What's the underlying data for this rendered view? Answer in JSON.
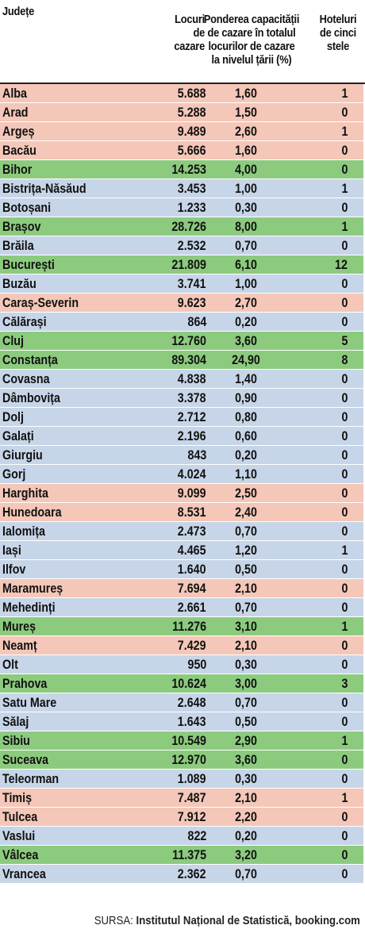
{
  "headers": {
    "county": "Județe",
    "places": [
      "Locuri",
      "de",
      "cazare"
    ],
    "share": [
      "Ponderea capacității",
      "de cazare în totalul",
      "locurilor de cazare",
      "la nivelul țării (%)"
    ],
    "hotels": [
      "Hoteluri",
      "de cinci",
      "stele"
    ]
  },
  "colors": {
    "orange": "#f4c7b8",
    "blue": "#c7d5e8",
    "green": "#8ccb7e"
  },
  "source": {
    "label": "SURSA:",
    "text": "Institutul Național de Statistică, booking.com"
  },
  "chart_data": {
    "type": "table",
    "columns": [
      "Județe",
      "Locuri de cazare",
      "Ponderea capacității de cazare în totalul locurilor de cazare la nivelul țării (%)",
      "Hoteluri de cinci stele"
    ],
    "rows": [
      {
        "name": "Alba",
        "places": "5.688",
        "pct": "1,60",
        "hotels": "1",
        "color": "orange"
      },
      {
        "name": "Arad",
        "places": "5.288",
        "pct": "1,50",
        "hotels": "0",
        "color": "orange"
      },
      {
        "name": "Argeș",
        "places": "9.489",
        "pct": "2,60",
        "hotels": "1",
        "color": "orange"
      },
      {
        "name": "Bacău",
        "places": "5.666",
        "pct": "1,60",
        "hotels": "0",
        "color": "orange"
      },
      {
        "name": "Bihor",
        "places": "14.253",
        "pct": "4,00",
        "hotels": "0",
        "color": "green"
      },
      {
        "name": "Bistrița-Năsăud",
        "places": "3.453",
        "pct": "1,00",
        "hotels": "1",
        "color": "blue"
      },
      {
        "name": "Botoșani",
        "places": "1.233",
        "pct": "0,30",
        "hotels": "0",
        "color": "blue"
      },
      {
        "name": "Brașov",
        "places": "28.726",
        "pct": "8,00",
        "hotels": "1",
        "color": "green"
      },
      {
        "name": "Brăila",
        "places": "2.532",
        "pct": "0,70",
        "hotels": "0",
        "color": "blue"
      },
      {
        "name": "București",
        "places": "21.809",
        "pct": "6,10",
        "hotels": "12",
        "color": "green"
      },
      {
        "name": "Buzău",
        "places": "3.741",
        "pct": "1,00",
        "hotels": "0",
        "color": "blue"
      },
      {
        "name": "Caraș-Severin",
        "places": "9.623",
        "pct": "2,70",
        "hotels": "0",
        "color": "orange"
      },
      {
        "name": "Călărași",
        "places": "864",
        "pct": "0,20",
        "hotels": "0",
        "color": "blue"
      },
      {
        "name": "Cluj",
        "places": "12.760",
        "pct": "3,60",
        "hotels": "5",
        "color": "green"
      },
      {
        "name": "Constanța",
        "places": "89.304",
        "pct": "24,90",
        "hotels": "8",
        "color": "green"
      },
      {
        "name": "Covasna",
        "places": "4.838",
        "pct": "1,40",
        "hotels": "0",
        "color": "blue"
      },
      {
        "name": "Dâmbovița",
        "places": "3.378",
        "pct": "0,90",
        "hotels": "0",
        "color": "blue"
      },
      {
        "name": "Dolj",
        "places": "2.712",
        "pct": "0,80",
        "hotels": "0",
        "color": "blue"
      },
      {
        "name": "Galați",
        "places": "2.196",
        "pct": "0,60",
        "hotels": "0",
        "color": "blue"
      },
      {
        "name": "Giurgiu",
        "places": "843",
        "pct": "0,20",
        "hotels": "0",
        "color": "blue"
      },
      {
        "name": "Gorj",
        "places": "4.024",
        "pct": "1,10",
        "hotels": "0",
        "color": "blue"
      },
      {
        "name": "Harghita",
        "places": "9.099",
        "pct": "2,50",
        "hotels": "0",
        "color": "orange"
      },
      {
        "name": "Hunedoara",
        "places": "8.531",
        "pct": "2,40",
        "hotels": "0",
        "color": "orange"
      },
      {
        "name": "Ialomița",
        "places": "2.473",
        "pct": "0,70",
        "hotels": "0",
        "color": "blue"
      },
      {
        "name": "Iași",
        "places": "4.465",
        "pct": "1,20",
        "hotels": "1",
        "color": "blue"
      },
      {
        "name": "Ilfov",
        "places": "1.640",
        "pct": "0,50",
        "hotels": "0",
        "color": "blue"
      },
      {
        "name": "Maramureș",
        "places": "7.694",
        "pct": "2,10",
        "hotels": "0",
        "color": "orange"
      },
      {
        "name": "Mehedinți",
        "places": "2.661",
        "pct": "0,70",
        "hotels": "0",
        "color": "blue"
      },
      {
        "name": "Mureș",
        "places": "11.276",
        "pct": "3,10",
        "hotels": "1",
        "color": "green"
      },
      {
        "name": "Neamț",
        "places": "7.429",
        "pct": "2,10",
        "hotels": "0",
        "color": "orange"
      },
      {
        "name": "Olt",
        "places": "950",
        "pct": "0,30",
        "hotels": "0",
        "color": "blue"
      },
      {
        "name": "Prahova",
        "places": "10.624",
        "pct": "3,00",
        "hotels": "3",
        "color": "green"
      },
      {
        "name": "Satu Mare",
        "places": "2.648",
        "pct": "0,70",
        "hotels": "0",
        "color": "blue"
      },
      {
        "name": "Sălaj",
        "places": "1.643",
        "pct": "0,50",
        "hotels": "0",
        "color": "blue"
      },
      {
        "name": "Sibiu",
        "places": "10.549",
        "pct": "2,90",
        "hotels": "1",
        "color": "green"
      },
      {
        "name": "Suceava",
        "places": "12.970",
        "pct": "3,60",
        "hotels": "0",
        "color": "green"
      },
      {
        "name": "Teleorman",
        "places": "1.089",
        "pct": "0,30",
        "hotels": "0",
        "color": "blue"
      },
      {
        "name": "Timiș",
        "places": "7.487",
        "pct": "2,10",
        "hotels": "1",
        "color": "orange"
      },
      {
        "name": "Tulcea",
        "places": "7.912",
        "pct": "2,20",
        "hotels": "0",
        "color": "orange"
      },
      {
        "name": "Vaslui",
        "places": "822",
        "pct": "0,20",
        "hotels": "0",
        "color": "blue"
      },
      {
        "name": "Vâlcea",
        "places": "11.375",
        "pct": "3,20",
        "hotels": "0",
        "color": "green"
      },
      {
        "name": "Vrancea",
        "places": "2.362",
        "pct": "0,70",
        "hotels": "0",
        "color": "blue"
      }
    ]
  }
}
